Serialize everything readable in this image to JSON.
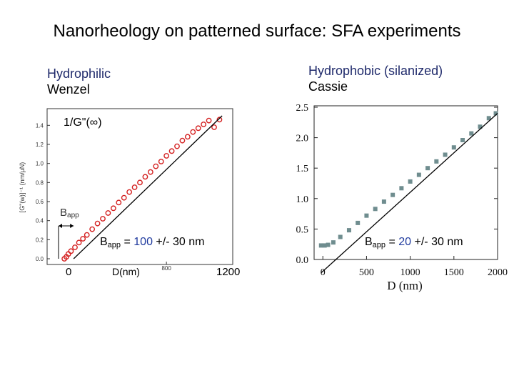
{
  "title": "Nanorheology on patterned surface: SFA experiments",
  "left_panel": {
    "heading_line1": "Hydrophilic",
    "heading_line2": "Wenzel",
    "inset_label": "1/G\"(∞)",
    "bapp_marker": "B",
    "bapp_marker_sub": "app",
    "result_prefix": "B",
    "result_sub": "app",
    "result_eq": " = ",
    "result_value": "100",
    "result_unit": " +/- 30 nm",
    "overlay_x_start": "0",
    "overlay_x_label": "D(nm)",
    "overlay_x_end": "1200"
  },
  "right_panel": {
    "heading_line1": "Hydrophobic (silanized)",
    "heading_line2": "Cassie",
    "result_prefix": "B",
    "result_sub": "app",
    "result_eq": " = ",
    "result_value": "20",
    "result_unit": " +/- 30 nm"
  },
  "colors": {
    "left_markers": "#d42020",
    "right_markers": "#6f8d8f",
    "fit_line": "#000000",
    "value_blue": "#1f3a9e"
  },
  "chart_data": [
    {
      "type": "scatter",
      "panel": "left",
      "xlabel": "",
      "ylabel": "[G\"(w)]⁻¹ (nm/μN)",
      "x_ticks": [
        "800"
      ],
      "y_ticks": [
        "0.0",
        "0.2",
        "0.4",
        "0.6",
        "0.8",
        "1.0",
        "1.2",
        "1.4"
      ],
      "xlim": [
        -100,
        1300
      ],
      "ylim": [
        0,
        1.5
      ],
      "series": [
        {
          "points": [
            [
              30,
              0.0
            ],
            [
              45,
              0.02
            ],
            [
              60,
              0.05
            ],
            [
              80,
              0.08
            ],
            [
              110,
              0.12
            ],
            [
              140,
              0.17
            ],
            [
              170,
              0.21
            ],
            [
              200,
              0.25
            ],
            [
              240,
              0.31
            ],
            [
              280,
              0.37
            ],
            [
              320,
              0.42
            ],
            [
              360,
              0.48
            ],
            [
              400,
              0.53
            ],
            [
              440,
              0.59
            ],
            [
              480,
              0.64
            ],
            [
              520,
              0.7
            ],
            [
              560,
              0.75
            ],
            [
              600,
              0.8
            ],
            [
              640,
              0.86
            ],
            [
              680,
              0.91
            ],
            [
              720,
              0.97
            ],
            [
              760,
              1.02
            ],
            [
              800,
              1.08
            ],
            [
              840,
              1.13
            ],
            [
              880,
              1.18
            ],
            [
              920,
              1.24
            ],
            [
              960,
              1.28
            ],
            [
              1000,
              1.33
            ],
            [
              1040,
              1.37
            ],
            [
              1080,
              1.41
            ],
            [
              1120,
              1.45
            ],
            [
              1160,
              1.38
            ],
            [
              1200,
              1.46
            ]
          ]
        }
      ],
      "fit_line": {
        "x": [
          100,
          1220
        ],
        "y": [
          0.0,
          1.5
        ]
      }
    },
    {
      "type": "scatter",
      "panel": "right",
      "xlabel": "D  (nm)",
      "ylabel": "",
      "x_ticks": [
        "0",
        "500",
        "1000",
        "1500",
        "2000"
      ],
      "y_ticks": [
        "0.0",
        "0.5",
        "1.0",
        "1.5",
        "2.0",
        "2.5"
      ],
      "xlim": [
        -100,
        2000
      ],
      "ylim": [
        0,
        2.5
      ],
      "series": [
        {
          "points": [
            [
              -20,
              0.23
            ],
            [
              20,
              0.23
            ],
            [
              60,
              0.24
            ],
            [
              120,
              0.28
            ],
            [
              200,
              0.37
            ],
            [
              300,
              0.48
            ],
            [
              400,
              0.6
            ],
            [
              500,
              0.72
            ],
            [
              600,
              0.83
            ],
            [
              700,
              0.95
            ],
            [
              800,
              1.06
            ],
            [
              900,
              1.17
            ],
            [
              1000,
              1.28
            ],
            [
              1100,
              1.39
            ],
            [
              1200,
              1.5
            ],
            [
              1300,
              1.61
            ],
            [
              1400,
              1.72
            ],
            [
              1500,
              1.84
            ],
            [
              1600,
              1.96
            ],
            [
              1700,
              2.07
            ],
            [
              1800,
              2.18
            ],
            [
              1900,
              2.32
            ],
            [
              1980,
              2.4
            ]
          ]
        }
      ],
      "fit_line": {
        "x": [
          -20,
          2000
        ],
        "y": [
          -0.22,
          2.4
        ]
      }
    }
  ]
}
